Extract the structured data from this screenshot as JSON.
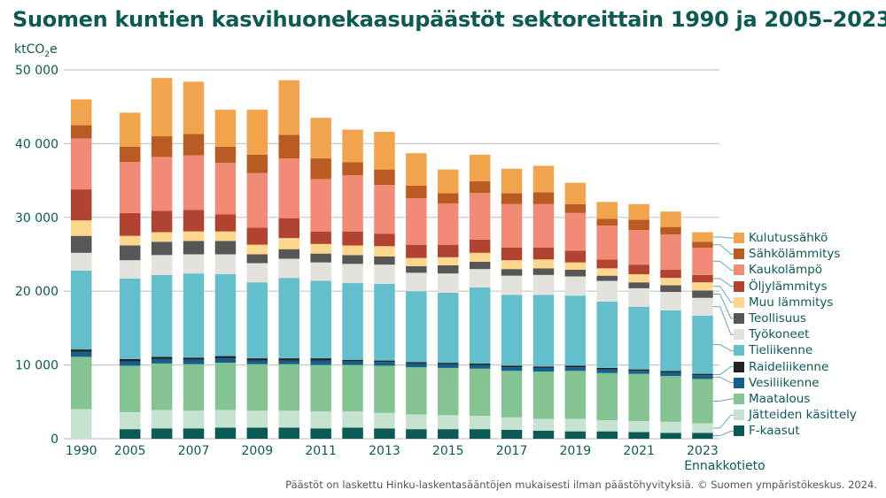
{
  "title": "Suomen kuntien kasvihuonekaasupäästöt sektoreittain 1990 ja 2005–2023",
  "unit": {
    "prefix": "ktCO",
    "sub": "2",
    "suffix": "e"
  },
  "source_note": "Päästöt on laskettu Hinku-laskentasääntöjen mukaisesti ilman päästöhyvityksiä. © Suomen ympäristökeskus. 2024.",
  "chart_data": {
    "type": "bar",
    "stacked": true,
    "title": "Suomen kuntien kasvihuonekaasupäästöt sektoreittain 1990 ja 2005–2023",
    "ylabel": "ktCO₂e",
    "xlabel": "",
    "ylim": [
      0,
      50000
    ],
    "yticks": [
      0,
      10000,
      20000,
      30000,
      40000,
      50000
    ],
    "ytick_labels": [
      "0",
      "10 000",
      "20 000",
      "30 000",
      "40 000",
      "50 000"
    ],
    "grid": true,
    "legend_position": "right",
    "categories": [
      "1990",
      "2005",
      "2006",
      "2007",
      "2008",
      "2009",
      "2010",
      "2011",
      "2012",
      "2013",
      "2014",
      "2015",
      "2016",
      "2017",
      "2018",
      "2019",
      "2020",
      "2021",
      "2022",
      "2023"
    ],
    "xtick_labels": [
      "1990",
      "2005",
      "",
      "2007",
      "",
      "2009",
      "",
      "2011",
      "",
      "2013",
      "",
      "2015",
      "",
      "2017",
      "",
      "2019",
      "",
      "2021",
      "",
      "2023"
    ],
    "annotation_2023": "Ennakkotieto",
    "series": [
      {
        "name": "F-kaasut",
        "color": "#0b5a53",
        "values": [
          0,
          1300,
          1400,
          1400,
          1500,
          1500,
          1500,
          1400,
          1500,
          1400,
          1300,
          1300,
          1300,
          1200,
          1100,
          1000,
          1000,
          900,
          800,
          800
        ]
      },
      {
        "name": "Jätteiden käsittely",
        "color": "#c6e3d2",
        "values": [
          4000,
          2300,
          2500,
          2400,
          2400,
          2300,
          2300,
          2300,
          2200,
          2100,
          2000,
          1900,
          1800,
          1700,
          1600,
          1700,
          1500,
          1500,
          1500,
          1300
        ]
      },
      {
        "name": "Maatalous",
        "color": "#84c493",
        "values": [
          7100,
          6300,
          6300,
          6300,
          6400,
          6300,
          6300,
          6300,
          6300,
          6400,
          6400,
          6400,
          6400,
          6300,
          6400,
          6500,
          6400,
          6400,
          6200,
          6000
        ]
      },
      {
        "name": "Vesiliikenne",
        "color": "#14608a",
        "values": [
          700,
          600,
          600,
          600,
          600,
          500,
          500,
          600,
          500,
          500,
          500,
          500,
          500,
          500,
          500,
          500,
          500,
          400,
          500,
          500
        ]
      },
      {
        "name": "Raideliikenne",
        "color": "#222222",
        "values": [
          300,
          300,
          300,
          300,
          300,
          300,
          300,
          300,
          200,
          200,
          200,
          200,
          200,
          200,
          200,
          200,
          200,
          200,
          200,
          200
        ]
      },
      {
        "name": "Tieliikenne",
        "color": "#62bfcb",
        "values": [
          10700,
          10900,
          11100,
          11400,
          11100,
          10300,
          10900,
          10500,
          10400,
          10400,
          9600,
          9500,
          10300,
          9600,
          9700,
          9500,
          9000,
          8500,
          8200,
          7900
        ]
      },
      {
        "name": "Työkoneet",
        "color": "#e3e2dd",
        "values": [
          2400,
          2500,
          2700,
          2600,
          2700,
          2600,
          2600,
          2500,
          2600,
          2600,
          2500,
          2600,
          2500,
          2600,
          2700,
          2600,
          2800,
          2500,
          2500,
          2400
        ]
      },
      {
        "name": "Teollisuus",
        "color": "#575757",
        "values": [
          2300,
          2000,
          1800,
          1800,
          1800,
          1200,
          1300,
          1200,
          1200,
          1100,
          900,
          1100,
          1000,
          900,
          900,
          900,
          700,
          800,
          900,
          1000
        ]
      },
      {
        "name": "Muu lämmitys",
        "color": "#fdd88c",
        "values": [
          2100,
          1300,
          1300,
          1300,
          1300,
          1300,
          1500,
          1300,
          1300,
          1400,
          1100,
          1100,
          1200,
          1200,
          1200,
          1000,
          1000,
          1100,
          1000,
          1100
        ]
      },
      {
        "name": "Öljylämmitys",
        "color": "#b24331",
        "values": [
          4200,
          3100,
          2900,
          2900,
          2300,
          2300,
          2700,
          1700,
          1900,
          1700,
          1800,
          1700,
          1800,
          1700,
          1600,
          1600,
          1200,
          1300,
          1100,
          1000
        ]
      },
      {
        "name": "Kaukolämpö",
        "color": "#f28b76",
        "values": [
          6900,
          6900,
          7300,
          7400,
          7000,
          7400,
          8100,
          7100,
          7600,
          6600,
          6300,
          5600,
          6300,
          5900,
          5900,
          5100,
          4600,
          4700,
          4800,
          3700
        ]
      },
      {
        "name": "Sähkölämmitys",
        "color": "#ba5b24",
        "values": [
          1800,
          2100,
          2800,
          2900,
          2200,
          2500,
          3200,
          2800,
          1800,
          2100,
          1700,
          1400,
          1600,
          1500,
          1600,
          1200,
          900,
          1400,
          1000,
          800
        ]
      },
      {
        "name": "Kulutussähkö",
        "color": "#f2a44c",
        "values": [
          3500,
          4600,
          7900,
          7100,
          5000,
          6100,
          7400,
          5500,
          4400,
          5100,
          4400,
          3200,
          3600,
          3300,
          3600,
          2900,
          2300,
          2100,
          2100,
          1300
        ]
      }
    ],
    "totals_approx": [
      46000,
      44200,
      49000,
      48600,
      44300,
      44600,
      48600,
      43500,
      41900,
      41600,
      38700,
      36500,
      38400,
      36700,
      37000,
      35100,
      32100,
      31800,
      30800,
      28000
    ]
  },
  "legend": {
    "items": [
      {
        "label": "Kulutussähkö",
        "color": "#f2a44c"
      },
      {
        "label": "Sähkölämmitys",
        "color": "#ba5b24"
      },
      {
        "label": "Kaukolämpö",
        "color": "#f28b76"
      },
      {
        "label": "Öljylämmitys",
        "color": "#b24331"
      },
      {
        "label": "Muu lämmitys",
        "color": "#fdd88c"
      },
      {
        "label": "Teollisuus",
        "color": "#575757"
      },
      {
        "label": "Työkoneet",
        "color": "#e3e2dd"
      },
      {
        "label": "Tieliikenne",
        "color": "#62bfcb"
      },
      {
        "label": "Raideliikenne",
        "color": "#222222"
      },
      {
        "label": "Vesiliikenne",
        "color": "#14608a"
      },
      {
        "label": "Maatalous",
        "color": "#84c493"
      },
      {
        "label": "Jätteiden käsittely",
        "color": "#c6e3d2"
      },
      {
        "label": "F-kaasut",
        "color": "#0b5a53"
      }
    ]
  },
  "colors": {
    "text": "#0b5a53",
    "grid": "#c8c8c8",
    "leader": "#6aa9a5",
    "source_text": "#555555"
  }
}
